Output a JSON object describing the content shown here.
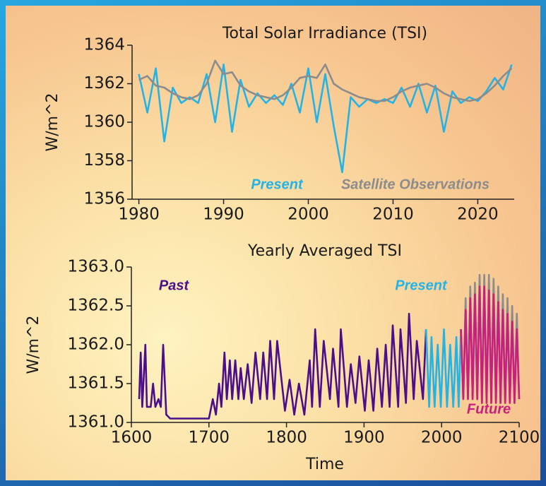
{
  "chart_data": [
    {
      "type": "line",
      "title": "Total Solar Irradiance (TSI)",
      "y_label": "W/m^2",
      "x": [
        1980,
        1981,
        1982,
        1983,
        1984,
        1985,
        1986,
        1987,
        1988,
        1989,
        1990,
        1991,
        1992,
        1993,
        1994,
        1995,
        1996,
        1997,
        1998,
        1999,
        2000,
        2001,
        2002,
        2003,
        2004,
        2005,
        2006,
        2007,
        2008,
        2009,
        2010,
        2011,
        2012,
        2013,
        2014,
        2015,
        2016,
        2017,
        2018,
        2019,
        2020,
        2021,
        2022,
        2023,
        2024
      ],
      "series": [
        {
          "name": "Present",
          "color": "#22b4e6",
          "values": [
            1362.5,
            1360.5,
            1362.8,
            1359.0,
            1361.8,
            1361.0,
            1361.3,
            1361.0,
            1362.5,
            1360.0,
            1363.0,
            1359.5,
            1362.2,
            1360.8,
            1361.5,
            1361.0,
            1361.4,
            1360.9,
            1362.0,
            1360.5,
            1362.8,
            1360.0,
            1362.5,
            1359.8,
            1357.4,
            1361.3,
            1360.8,
            1361.2,
            1361.0,
            1361.2,
            1361.0,
            1361.8,
            1360.8,
            1362.0,
            1360.5,
            1361.9,
            1359.5,
            1361.6,
            1361.0,
            1361.3,
            1361.1,
            1361.6,
            1362.3,
            1361.7,
            1363.0
          ]
        },
        {
          "name": "Satellite Observations",
          "color": "#8c8c8c",
          "values": [
            1362.2,
            1362.4,
            1361.9,
            1361.8,
            1361.5,
            1361.3,
            1361.2,
            1361.4,
            1362.0,
            1363.2,
            1362.5,
            1362.6,
            1361.9,
            1361.6,
            1361.4,
            1361.3,
            1361.2,
            1361.4,
            1361.8,
            1362.3,
            1362.4,
            1362.3,
            1363.0,
            1362.0,
            1361.7,
            1361.5,
            1361.3,
            1361.2,
            1361.1,
            1361.1,
            1361.3,
            1361.6,
            1361.8,
            1361.9,
            1362.0,
            1361.8,
            1361.5,
            1361.3,
            1361.2,
            1361.1,
            1361.2,
            1361.5,
            1361.9,
            1362.4,
            1362.8
          ]
        }
      ],
      "xlim": [
        1979.2,
        2024.3
      ],
      "xticks": [
        1980,
        1990,
        2000,
        2010,
        2020
      ],
      "ylim": [
        1356,
        1364
      ],
      "yticks": [
        1356,
        1358,
        1360,
        1362,
        1364
      ]
    },
    {
      "type": "line",
      "title": "Yearly Averaged TSI",
      "x_label": "Time",
      "y_label": "W/m^2",
      "series": [
        {
          "name": "Past",
          "color": "#4b0f8c",
          "x": [
            1610,
            1612,
            1614,
            1618,
            1620,
            1625,
            1628,
            1631,
            1635,
            1638,
            1641,
            1645,
            1650,
            1700,
            1705,
            1709,
            1713,
            1716,
            1720,
            1723,
            1727,
            1730,
            1734,
            1738,
            1741,
            1745,
            1750,
            1755,
            1760,
            1766,
            1770,
            1775,
            1779,
            1784,
            1788,
            1798,
            1804,
            1810,
            1816,
            1823,
            1830,
            1833,
            1837,
            1843,
            1848,
            1856,
            1860,
            1867,
            1870,
            1878,
            1883,
            1889,
            1894,
            1901,
            1906,
            1912,
            1917,
            1923,
            1928,
            1933,
            1937,
            1944,
            1947,
            1954,
            1958,
            1964,
            1968,
            1976,
            1980
          ],
          "values": [
            1361.3,
            1361.9,
            1361.2,
            1362.0,
            1361.2,
            1361.2,
            1361.5,
            1361.2,
            1361.3,
            1361.2,
            1362.0,
            1361.1,
            1361.05,
            1361.05,
            1361.3,
            1361.1,
            1361.5,
            1361.2,
            1361.9,
            1361.3,
            1361.8,
            1361.3,
            1361.8,
            1361.3,
            1361.7,
            1361.3,
            1361.75,
            1361.25,
            1361.9,
            1361.3,
            1361.9,
            1361.3,
            1362.05,
            1361.3,
            1362.05,
            1361.15,
            1361.55,
            1361.1,
            1361.5,
            1361.1,
            1361.8,
            1361.2,
            1362.2,
            1361.2,
            1362.05,
            1361.3,
            1361.95,
            1361.2,
            1362.2,
            1361.2,
            1361.75,
            1361.25,
            1361.85,
            1361.15,
            1361.8,
            1361.15,
            1361.95,
            1361.2,
            1362.0,
            1361.2,
            1362.25,
            1361.2,
            1362.2,
            1361.25,
            1362.4,
            1361.3,
            1362.05,
            1361.3,
            1362.2
          ]
        },
        {
          "name": "Present",
          "color": "#22b4e6",
          "x": [
            1980,
            1984,
            1987,
            1991,
            1995,
            1999,
            2003,
            2007,
            2011,
            2015,
            2019,
            2022,
            2025
          ],
          "values": [
            1362.2,
            1361.2,
            1362.1,
            1361.2,
            1362.0,
            1361.2,
            1362.2,
            1361.2,
            1362.0,
            1361.2,
            1362.1,
            1361.2,
            1362.2
          ]
        },
        {
          "color": "#8c8c8c",
          "x": [
            2025,
            2028,
            2031,
            2034,
            2037,
            2040,
            2043,
            2046,
            2049,
            2052,
            2055,
            2058,
            2061,
            2064,
            2067,
            2070,
            2073,
            2076,
            2079,
            2082,
            2085,
            2088,
            2091,
            2094,
            2097,
            2100
          ],
          "values": [
            1362.2,
            1361.3,
            1362.6,
            1361.3,
            1362.75,
            1361.3,
            1362.8,
            1361.3,
            1362.9,
            1361.25,
            1362.9,
            1361.25,
            1362.9,
            1361.25,
            1362.85,
            1361.25,
            1362.75,
            1361.25,
            1362.65,
            1361.25,
            1362.6,
            1361.25,
            1362.5,
            1361.25,
            1362.4,
            1361.3
          ]
        },
        {
          "name": "Future",
          "color": "#c8207e",
          "x": [
            2025,
            2028,
            2031,
            2034,
            2037,
            2040,
            2043,
            2046,
            2049,
            2052,
            2055,
            2058,
            2061,
            2064,
            2067,
            2070,
            2073,
            2076,
            2079,
            2082,
            2085,
            2088,
            2091,
            2094,
            2097,
            2100
          ],
          "values": [
            1362.2,
            1361.3,
            1362.45,
            1361.3,
            1362.6,
            1361.3,
            1362.65,
            1361.3,
            1362.75,
            1361.25,
            1362.75,
            1361.25,
            1362.7,
            1361.25,
            1362.65,
            1361.25,
            1362.55,
            1361.25,
            1362.45,
            1361.25,
            1362.4,
            1361.25,
            1362.3,
            1361.25,
            1362.2,
            1361.3
          ]
        }
      ],
      "xlim": [
        1600,
        2100
      ],
      "xticks": [
        1600,
        1700,
        1800,
        1900,
        2000,
        2100
      ],
      "ylim": [
        1361,
        1363
      ],
      "yticks": [
        {
          "value": 1361,
          "label": "1361.0"
        },
        {
          "value": 1361.5,
          "label": "1361.5"
        },
        {
          "value": 1362,
          "label": "1362.0"
        },
        {
          "value": 1362.5,
          "label": "1362.5"
        },
        {
          "value": 1363,
          "label": "1363.0"
        }
      ]
    }
  ]
}
